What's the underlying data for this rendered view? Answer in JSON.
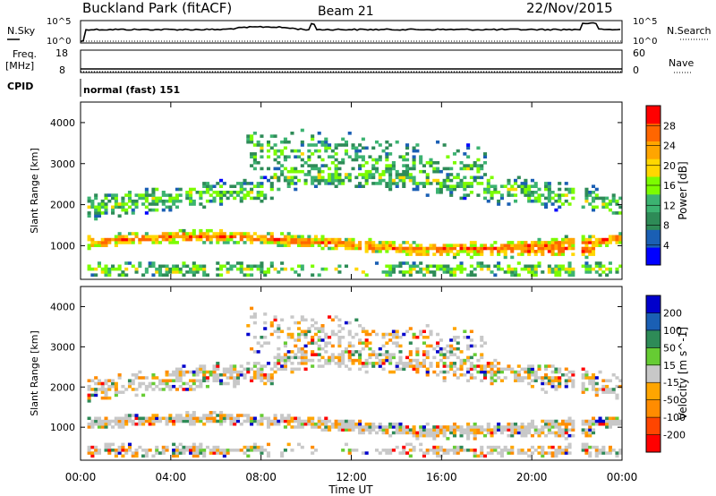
{
  "header": {
    "station": "Buckland Park (fitACF)",
    "beam": "Beam 21",
    "date": "22/Nov/2015"
  },
  "panels": {
    "nsky": {
      "label": "N.Sky",
      "tick_top": "10^5",
      "tick_bottom": "10^0",
      "right_label": "N.Search",
      "right_tick_top": "10^5",
      "right_tick_bottom": "10^0"
    },
    "freq": {
      "label_line1": "Freq.",
      "label_line2": "[MHz]",
      "tick_top": "18",
      "tick_bottom": "8",
      "right_label": "Nave",
      "right_tick_top": "60",
      "right_tick_bottom": "0"
    },
    "cpid": {
      "label": "CPID",
      "value": "normal (fast) 151"
    }
  },
  "colors": {
    "power": [
      "#0000ff",
      "#1a5fb4",
      "#2e8b57",
      "#3cb371",
      "#7cfc00",
      "#ffd700",
      "#ffa500",
      "#ff6600",
      "#ff0000"
    ],
    "velocity": [
      "#ff0000",
      "#ff4500",
      "#ff8c00",
      "#ffa500",
      "#c8c8c8",
      "#66cc33",
      "#2e8b57",
      "#1a5fb4",
      "#0000cc"
    ]
  },
  "chart_data": [
    {
      "type": "heatmap",
      "name": "power",
      "title": "",
      "xlabel": "",
      "ylabel": "Slant Range [km]",
      "xlim": [
        "00:00",
        "00:00"
      ],
      "x_ticks": [
        "00:00",
        "04:00",
        "08:00",
        "12:00",
        "16:00",
        "20:00",
        "00:00"
      ],
      "ylim": [
        180,
        4500
      ],
      "y_ticks": [
        1000,
        2000,
        3000,
        4000
      ],
      "colorbar": {
        "label": "Power [dB]",
        "ticks": [
          "4",
          "8",
          "12",
          "16",
          "20",
          "24",
          "28"
        ],
        "range": [
          0,
          32
        ]
      }
    },
    {
      "type": "heatmap",
      "name": "velocity",
      "title": "",
      "xlabel": "Time UT",
      "ylabel": "Slant Range [km]",
      "xlim": [
        "00:00",
        "00:00"
      ],
      "x_ticks": [
        "00:00",
        "04:00",
        "08:00",
        "12:00",
        "16:00",
        "20:00",
        "00:00"
      ],
      "ylim": [
        180,
        4500
      ],
      "y_ticks": [
        1000,
        2000,
        3000,
        4000
      ],
      "colorbar": {
        "label": "Velocity [m s^-1]",
        "ticks": [
          "200",
          "100",
          "50",
          "15",
          "-15",
          "-50",
          "-100",
          "-200"
        ]
      }
    }
  ]
}
